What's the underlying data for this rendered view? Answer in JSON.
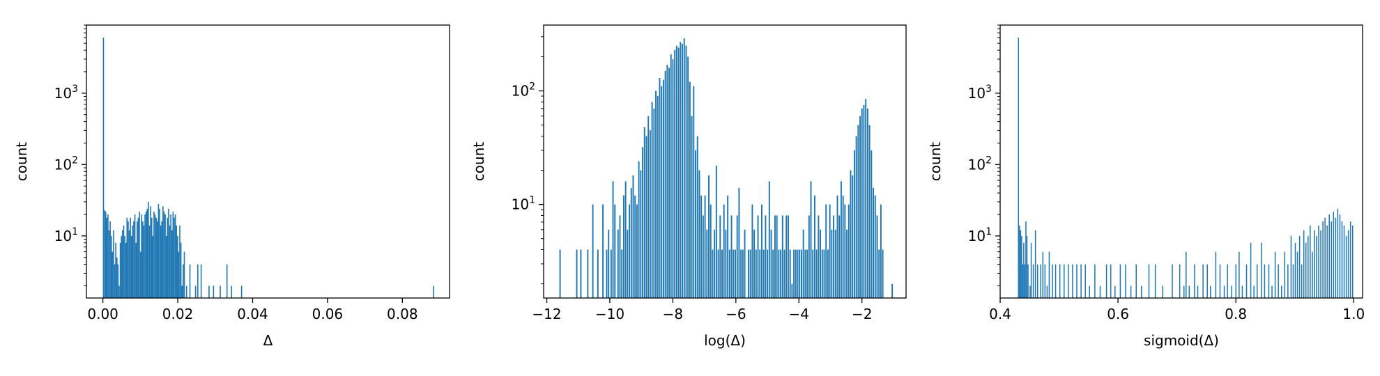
{
  "figure": {
    "background": "#ffffff",
    "bar_color": "#1f77b4"
  },
  "chart_data": [
    {
      "type": "bar",
      "subtype": "histogram",
      "xlabel": "Δ",
      "ylabel": "count",
      "yscale": "log",
      "xlim": [
        -0.0044,
        0.0926
      ],
      "ylim": [
        1.35,
        9000
      ],
      "xticks": [
        {
          "value": 0.0,
          "label": "0.00"
        },
        {
          "value": 0.02,
          "label": "0.02"
        },
        {
          "value": 0.04,
          "label": "0.04"
        },
        {
          "value": 0.06,
          "label": "0.06"
        },
        {
          "value": 0.08,
          "label": "0.08"
        }
      ],
      "bin_width": 0.0003,
      "bins": [
        [
          0.0,
          6000
        ],
        [
          0.0003,
          23
        ],
        [
          0.0006,
          22
        ],
        [
          0.0009,
          18
        ],
        [
          0.0012,
          20
        ],
        [
          0.0015,
          12
        ],
        [
          0.0018,
          16
        ],
        [
          0.0021,
          10
        ],
        [
          0.0024,
          6
        ],
        [
          0.0027,
          12
        ],
        [
          0.003,
          4
        ],
        [
          0.0033,
          8
        ],
        [
          0.0036,
          5
        ],
        [
          0.0039,
          4
        ],
        [
          0.0042,
          2
        ],
        [
          0.0045,
          8
        ],
        [
          0.0048,
          10
        ],
        [
          0.0051,
          12
        ],
        [
          0.0054,
          14
        ],
        [
          0.0057,
          10
        ],
        [
          0.006,
          8
        ],
        [
          0.0063,
          18
        ],
        [
          0.0066,
          16
        ],
        [
          0.0069,
          12
        ],
        [
          0.0072,
          18
        ],
        [
          0.0075,
          10
        ],
        [
          0.0078,
          14
        ],
        [
          0.0081,
          16
        ],
        [
          0.0084,
          20
        ],
        [
          0.0087,
          8
        ],
        [
          0.009,
          16
        ],
        [
          0.0093,
          18
        ],
        [
          0.0096,
          22
        ],
        [
          0.0099,
          6
        ],
        [
          0.0102,
          20
        ],
        [
          0.0105,
          16
        ],
        [
          0.0108,
          14
        ],
        [
          0.0111,
          20
        ],
        [
          0.0114,
          22
        ],
        [
          0.0117,
          24
        ],
        [
          0.012,
          30
        ],
        [
          0.0123,
          14
        ],
        [
          0.0126,
          26
        ],
        [
          0.0129,
          18
        ],
        [
          0.0132,
          10
        ],
        [
          0.0135,
          22
        ],
        [
          0.0138,
          20
        ],
        [
          0.0141,
          18
        ],
        [
          0.0144,
          16
        ],
        [
          0.0147,
          28
        ],
        [
          0.015,
          24
        ],
        [
          0.0153,
          14
        ],
        [
          0.0156,
          16
        ],
        [
          0.0159,
          26
        ],
        [
          0.0162,
          22
        ],
        [
          0.0165,
          20
        ],
        [
          0.0168,
          10
        ],
        [
          0.0171,
          18
        ],
        [
          0.0174,
          24
        ],
        [
          0.0177,
          14
        ],
        [
          0.018,
          20
        ],
        [
          0.0183,
          12
        ],
        [
          0.0186,
          22
        ],
        [
          0.0189,
          18
        ],
        [
          0.0192,
          20
        ],
        [
          0.0195,
          14
        ],
        [
          0.0198,
          10
        ],
        [
          0.0201,
          6
        ],
        [
          0.0204,
          14
        ],
        [
          0.0207,
          8
        ],
        [
          0.021,
          2
        ],
        [
          0.0213,
          4
        ],
        [
          0.0216,
          6
        ],
        [
          0.0222,
          2
        ],
        [
          0.0231,
          4
        ],
        [
          0.0246,
          2
        ],
        [
          0.0252,
          4
        ],
        [
          0.0261,
          4
        ],
        [
          0.0282,
          2
        ],
        [
          0.0294,
          2
        ],
        [
          0.0312,
          2
        ],
        [
          0.033,
          4
        ],
        [
          0.0342,
          2
        ],
        [
          0.0369,
          2
        ],
        [
          0.0882,
          2
        ]
      ]
    },
    {
      "type": "bar",
      "subtype": "histogram",
      "xlabel": "log(Δ)",
      "ylabel": "count",
      "yscale": "log",
      "xlim": [
        -12.1,
        -0.6
      ],
      "ylim": [
        1.5,
        380
      ],
      "xticks": [
        {
          "value": -12,
          "label": "−12"
        },
        {
          "value": -10,
          "label": "−10"
        },
        {
          "value": -8,
          "label": "−8"
        },
        {
          "value": -6,
          "label": "−6"
        },
        {
          "value": -4,
          "label": "−4"
        },
        {
          "value": -2,
          "label": "−2"
        }
      ],
      "bin_width": 0.043,
      "bins": [
        [
          -11.6,
          4
        ],
        [
          -11.07,
          4
        ],
        [
          -10.94,
          4
        ],
        [
          -10.72,
          4
        ],
        [
          -10.56,
          10
        ],
        [
          -10.4,
          4
        ],
        [
          -10.24,
          10
        ],
        [
          -10.12,
          4
        ],
        [
          -10.06,
          6
        ],
        [
          -9.98,
          4
        ],
        [
          -9.92,
          16
        ],
        [
          -9.86,
          10
        ],
        [
          -9.76,
          6
        ],
        [
          -9.7,
          8
        ],
        [
          -9.64,
          4
        ],
        [
          -9.58,
          12
        ],
        [
          -9.52,
          16
        ],
        [
          -9.46,
          6
        ],
        [
          -9.4,
          10
        ],
        [
          -9.34,
          14
        ],
        [
          -9.28,
          18
        ],
        [
          -9.22,
          12
        ],
        [
          -9.16,
          10
        ],
        [
          -9.1,
          24
        ],
        [
          -9.04,
          20
        ],
        [
          -8.98,
          32
        ],
        [
          -8.92,
          48
        ],
        [
          -8.86,
          40
        ],
        [
          -8.8,
          60
        ],
        [
          -8.74,
          45
        ],
        [
          -8.68,
          80
        ],
        [
          -8.62,
          70
        ],
        [
          -8.56,
          100
        ],
        [
          -8.5,
          90
        ],
        [
          -8.44,
          130
        ],
        [
          -8.38,
          110
        ],
        [
          -8.32,
          125
        ],
        [
          -8.26,
          150
        ],
        [
          -8.2,
          170
        ],
        [
          -8.14,
          160
        ],
        [
          -8.08,
          210
        ],
        [
          -8.02,
          190
        ],
        [
          -7.96,
          230
        ],
        [
          -7.9,
          250
        ],
        [
          -7.84,
          240
        ],
        [
          -7.78,
          270
        ],
        [
          -7.72,
          260
        ],
        [
          -7.66,
          290
        ],
        [
          -7.6,
          250
        ],
        [
          -7.54,
          200
        ],
        [
          -7.48,
          120
        ],
        [
          -7.42,
          60
        ],
        [
          -7.36,
          110
        ],
        [
          -7.3,
          30
        ],
        [
          -7.24,
          40
        ],
        [
          -7.18,
          20
        ],
        [
          -7.12,
          12
        ],
        [
          -7.06,
          8
        ],
        [
          -7.0,
          12
        ],
        [
          -6.94,
          6
        ],
        [
          -6.88,
          18
        ],
        [
          -6.82,
          10
        ],
        [
          -6.76,
          4
        ],
        [
          -6.7,
          6
        ],
        [
          -6.64,
          22
        ],
        [
          -6.58,
          4
        ],
        [
          -6.52,
          8
        ],
        [
          -6.46,
          4
        ],
        [
          -6.4,
          10
        ],
        [
          -6.34,
          6
        ],
        [
          -6.28,
          12
        ],
        [
          -6.22,
          4
        ],
        [
          -6.16,
          8
        ],
        [
          -6.1,
          4
        ],
        [
          -6.04,
          4
        ],
        [
          -5.98,
          8
        ],
        [
          -5.92,
          14
        ],
        [
          -5.86,
          4
        ],
        [
          -5.8,
          4
        ],
        [
          -5.74,
          6
        ],
        [
          -5.62,
          4
        ],
        [
          -5.56,
          4
        ],
        [
          -5.5,
          10
        ],
        [
          -5.44,
          6
        ],
        [
          -5.38,
          4
        ],
        [
          -5.32,
          8
        ],
        [
          -5.26,
          4
        ],
        [
          -5.2,
          10
        ],
        [
          -5.14,
          4
        ],
        [
          -5.08,
          8
        ],
        [
          -5.02,
          4
        ],
        [
          -4.96,
          16
        ],
        [
          -4.9,
          6
        ],
        [
          -4.84,
          4
        ],
        [
          -4.78,
          8
        ],
        [
          -4.72,
          8
        ],
        [
          -4.66,
          4
        ],
        [
          -4.6,
          4
        ],
        [
          -4.54,
          8
        ],
        [
          -4.48,
          4
        ],
        [
          -4.42,
          8
        ],
        [
          -4.36,
          8
        ],
        [
          -4.3,
          4
        ],
        [
          -4.24,
          2
        ],
        [
          -4.18,
          4
        ],
        [
          -4.12,
          4
        ],
        [
          -4.06,
          4
        ],
        [
          -4.0,
          4
        ],
        [
          -3.94,
          4
        ],
        [
          -3.88,
          6
        ],
        [
          -3.82,
          4
        ],
        [
          -3.76,
          4
        ],
        [
          -3.7,
          8
        ],
        [
          -3.64,
          16
        ],
        [
          -3.58,
          4
        ],
        [
          -3.52,
          12
        ],
        [
          -3.46,
          4
        ],
        [
          -3.4,
          8
        ],
        [
          -3.34,
          6
        ],
        [
          -3.28,
          4
        ],
        [
          -3.22,
          4
        ],
        [
          -3.16,
          10
        ],
        [
          -3.1,
          4
        ],
        [
          -3.04,
          10
        ],
        [
          -2.98,
          6
        ],
        [
          -2.92,
          8
        ],
        [
          -2.86,
          6
        ],
        [
          -2.8,
          12
        ],
        [
          -2.74,
          8
        ],
        [
          -2.68,
          16
        ],
        [
          -2.62,
          12
        ],
        [
          -2.56,
          10
        ],
        [
          -2.5,
          6
        ],
        [
          -2.44,
          10
        ],
        [
          -2.38,
          20
        ],
        [
          -2.32,
          18
        ],
        [
          -2.26,
          30
        ],
        [
          -2.2,
          40
        ],
        [
          -2.14,
          50
        ],
        [
          -2.08,
          60
        ],
        [
          -2.02,
          70
        ],
        [
          -1.96,
          75
        ],
        [
          -1.9,
          85
        ],
        [
          -1.84,
          70
        ],
        [
          -1.78,
          50
        ],
        [
          -1.72,
          30
        ],
        [
          -1.66,
          14
        ],
        [
          -1.6,
          12
        ],
        [
          -1.54,
          8
        ],
        [
          -1.48,
          4
        ],
        [
          -1.42,
          10
        ],
        [
          -1.36,
          4
        ],
        [
          -1.06,
          2
        ]
      ]
    },
    {
      "type": "bar",
      "subtype": "histogram",
      "xlabel": "sigmoid(Δ)",
      "ylabel": "count",
      "yscale": "log",
      "xlim": [
        0.4,
        1.015
      ],
      "ylim": [
        1.35,
        9000
      ],
      "xticks": [
        {
          "value": 0.4,
          "label": "0.4"
        },
        {
          "value": 0.6,
          "label": "0.6"
        },
        {
          "value": 0.8,
          "label": "0.8"
        },
        {
          "value": 1.0,
          "label": "1.0"
        }
      ],
      "bin_width": 0.0018,
      "bins": [
        [
          0.4302,
          6000
        ],
        [
          0.432,
          14
        ],
        [
          0.4338,
          12
        ],
        [
          0.4356,
          10
        ],
        [
          0.4374,
          4
        ],
        [
          0.4392,
          8
        ],
        [
          0.441,
          4
        ],
        [
          0.4428,
          16
        ],
        [
          0.4446,
          10
        ],
        [
          0.4464,
          4
        ],
        [
          0.45,
          2
        ],
        [
          0.4518,
          8
        ],
        [
          0.4554,
          4
        ],
        [
          0.459,
          12
        ],
        [
          0.4626,
          4
        ],
        [
          0.468,
          4
        ],
        [
          0.4716,
          6
        ],
        [
          0.4752,
          4
        ],
        [
          0.4788,
          2
        ],
        [
          0.4824,
          6
        ],
        [
          0.4878,
          4
        ],
        [
          0.4932,
          4
        ],
        [
          0.5004,
          4
        ],
        [
          0.5076,
          4
        ],
        [
          0.5148,
          4
        ],
        [
          0.522,
          4
        ],
        [
          0.5292,
          4
        ],
        [
          0.5364,
          4
        ],
        [
          0.5436,
          4
        ],
        [
          0.5508,
          2
        ],
        [
          0.5598,
          4
        ],
        [
          0.5688,
          2
        ],
        [
          0.5796,
          4
        ],
        [
          0.5868,
          4
        ],
        [
          0.594,
          2
        ],
        [
          0.603,
          4
        ],
        [
          0.612,
          4
        ],
        [
          0.621,
          2
        ],
        [
          0.63,
          4
        ],
        [
          0.639,
          2
        ],
        [
          0.6516,
          4
        ],
        [
          0.6624,
          4
        ],
        [
          0.675,
          2
        ],
        [
          0.6912,
          4
        ],
        [
          0.7038,
          4
        ],
        [
          0.711,
          2
        ],
        [
          0.7146,
          6
        ],
        [
          0.72,
          2
        ],
        [
          0.729,
          4
        ],
        [
          0.7344,
          2
        ],
        [
          0.7434,
          4
        ],
        [
          0.7506,
          4
        ],
        [
          0.756,
          2
        ],
        [
          0.765,
          6
        ],
        [
          0.7722,
          4
        ],
        [
          0.7794,
          2
        ],
        [
          0.7848,
          4
        ],
        [
          0.792,
          2
        ],
        [
          0.7992,
          4
        ],
        [
          0.8046,
          6
        ],
        [
          0.81,
          2
        ],
        [
          0.8172,
          4
        ],
        [
          0.8244,
          8
        ],
        [
          0.8298,
          2
        ],
        [
          0.8352,
          4
        ],
        [
          0.8424,
          8
        ],
        [
          0.8478,
          4
        ],
        [
          0.855,
          4
        ],
        [
          0.8604,
          2
        ],
        [
          0.8658,
          6
        ],
        [
          0.8712,
          4
        ],
        [
          0.8766,
          2
        ],
        [
          0.882,
          6
        ],
        [
          0.8874,
          4
        ],
        [
          0.8928,
          10
        ],
        [
          0.8964,
          4
        ],
        [
          0.9,
          8
        ],
        [
          0.9036,
          6
        ],
        [
          0.9072,
          10
        ],
        [
          0.9108,
          4
        ],
        [
          0.9144,
          12
        ],
        [
          0.918,
          8
        ],
        [
          0.9216,
          10
        ],
        [
          0.9252,
          14
        ],
        [
          0.9288,
          6
        ],
        [
          0.9324,
          12
        ],
        [
          0.936,
          10
        ],
        [
          0.9396,
          14
        ],
        [
          0.9432,
          12
        ],
        [
          0.9468,
          16
        ],
        [
          0.9504,
          18
        ],
        [
          0.954,
          14
        ],
        [
          0.9576,
          20
        ],
        [
          0.9612,
          16
        ],
        [
          0.9648,
          22
        ],
        [
          0.9684,
          18
        ],
        [
          0.972,
          24
        ],
        [
          0.9756,
          20
        ],
        [
          0.9792,
          16
        ],
        [
          0.9828,
          14
        ],
        [
          0.9864,
          10
        ],
        [
          0.99,
          12
        ],
        [
          0.9936,
          16
        ],
        [
          0.9972,
          14
        ]
      ]
    }
  ]
}
